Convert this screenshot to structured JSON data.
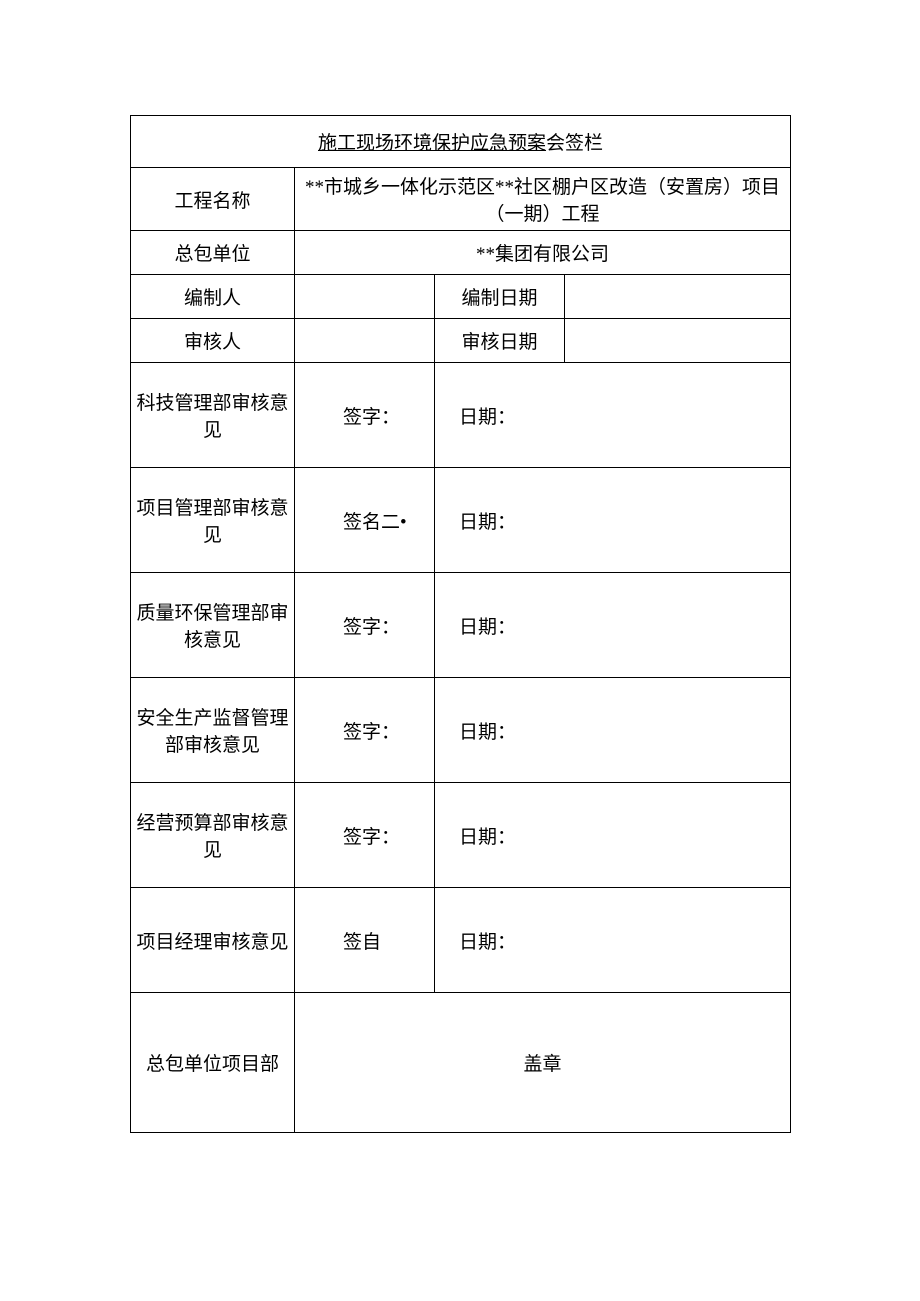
{
  "title": {
    "underlined": "施工现场环境保护应急预案",
    "suffix": "会签栏"
  },
  "rows": {
    "project_name": {
      "label": "工程名称",
      "value": "**市城乡一体化示范区**社区棚户区改造（安置房）项目（一期）工程"
    },
    "contractor": {
      "label": "总包单位",
      "value": "**集团有限公司"
    },
    "preparer": {
      "label": "编制人",
      "value": "",
      "date_label": "编制日期",
      "date_value": ""
    },
    "reviewer": {
      "label": "审核人",
      "value": "",
      "date_label": "审核日期",
      "date_value": ""
    },
    "tech_mgmt": {
      "label": "科技管理部审核意见",
      "sign_label": "签字：",
      "date_label": "日期："
    },
    "project_mgmt": {
      "label": "项目管理部审核意见",
      "sign_label": "签名二•",
      "date_label": "日期："
    },
    "quality_env": {
      "label": "质量环保管理部审核意见",
      "sign_label": "签字：",
      "date_label": "日期："
    },
    "safety_prod": {
      "label": "安全生产监督管理部审核意见",
      "sign_label": "签字：",
      "date_label": "日期："
    },
    "budget": {
      "label": "经营预算部审核意见",
      "sign_label": "签字：",
      "date_label": "日期："
    },
    "pm_review": {
      "label": "项目经理审核意见",
      "sign_label": "签自",
      "date_label": "日期："
    },
    "project_dept": {
      "label": "总包单位项目部",
      "seal_label": "盖章"
    }
  },
  "style": {
    "font_size_title": 21,
    "font_size_body": 19,
    "border_color": "#000000",
    "background_color": "#ffffff",
    "text_color": "#000000"
  }
}
